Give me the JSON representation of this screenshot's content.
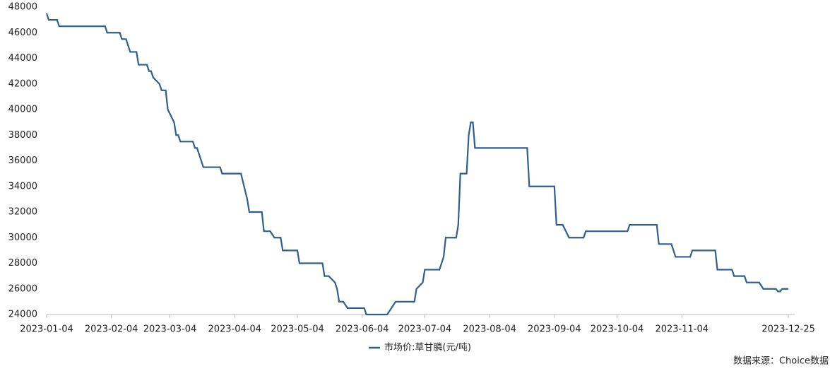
{
  "chart_data": {
    "type": "line",
    "x": [
      "2023-01-04",
      "2023-01-05",
      "2023-01-09",
      "2023-01-10",
      "2023-02-01",
      "2023-02-02",
      "2023-02-08",
      "2023-02-09",
      "2023-02-11",
      "2023-02-13",
      "2023-02-16",
      "2023-02-17",
      "2023-02-21",
      "2023-02-22",
      "2023-02-23",
      "2023-02-24",
      "2023-02-27",
      "2023-02-28",
      "2023-03-02",
      "2023-03-03",
      "2023-03-06",
      "2023-03-07",
      "2023-03-08",
      "2023-03-09",
      "2023-03-15",
      "2023-03-16",
      "2023-03-17",
      "2023-03-20",
      "2023-03-28",
      "2023-03-29",
      "2023-04-07",
      "2023-04-10",
      "2023-04-11",
      "2023-04-17",
      "2023-04-18",
      "2023-04-21",
      "2023-04-23",
      "2023-04-26",
      "2023-04-27",
      "2023-05-04",
      "2023-05-05",
      "2023-05-16",
      "2023-05-17",
      "2023-05-19",
      "2023-05-22",
      "2023-05-23",
      "2023-05-24",
      "2023-05-26",
      "2023-05-28",
      "2023-06-05",
      "2023-06-06",
      "2023-06-16",
      "2023-06-18",
      "2023-06-20",
      "2023-06-29",
      "2023-06-30",
      "2023-07-03",
      "2023-07-04",
      "2023-07-11",
      "2023-07-13",
      "2023-07-14",
      "2023-07-19",
      "2023-07-20",
      "2023-07-21",
      "2023-07-24",
      "2023-07-25",
      "2023-07-26",
      "2023-07-27",
      "2023-07-28",
      "2023-08-22",
      "2023-08-23",
      "2023-09-04",
      "2023-09-05",
      "2023-09-08",
      "2023-09-11",
      "2023-09-18",
      "2023-09-19",
      "2023-10-09",
      "2023-10-10",
      "2023-10-23",
      "2023-10-24",
      "2023-10-30",
      "2023-11-01",
      "2023-11-08",
      "2023-11-09",
      "2023-11-20",
      "2023-11-21",
      "2023-11-28",
      "2023-11-29",
      "2023-12-04",
      "2023-12-05",
      "2023-12-11",
      "2023-12-13",
      "2023-12-19",
      "2023-12-20",
      "2023-12-21",
      "2023-12-22",
      "2023-12-25"
    ],
    "series": [
      {
        "name": "市场价:草甘膦(元/吨)",
        "color": "#2f5f8f",
        "values": [
          47500,
          47000,
          47000,
          46500,
          46500,
          46000,
          46000,
          45500,
          45500,
          44500,
          44500,
          43500,
          43500,
          43000,
          43000,
          42500,
          42000,
          41500,
          41500,
          40000,
          39000,
          38000,
          38000,
          37500,
          37500,
          37000,
          37000,
          35500,
          35500,
          35000,
          35000,
          33000,
          32000,
          32000,
          30500,
          30500,
          30000,
          30000,
          29000,
          29000,
          28000,
          28000,
          27000,
          27000,
          26500,
          26000,
          25000,
          25000,
          24500,
          24500,
          24000,
          24000,
          24500,
          25000,
          25000,
          26000,
          26500,
          27500,
          27500,
          28500,
          30000,
          30000,
          31000,
          35000,
          35000,
          38000,
          39000,
          39000,
          37000,
          37000,
          34000,
          34000,
          31000,
          31000,
          30000,
          30000,
          30500,
          30500,
          31000,
          31000,
          29500,
          29500,
          28500,
          28500,
          29000,
          29000,
          27500,
          27500,
          27000,
          27000,
          26500,
          26500,
          26000,
          26000,
          25800,
          25800,
          26000,
          26000
        ]
      }
    ],
    "xlim": [
      "2023-01-04",
      "2023-12-28"
    ],
    "xticks": [
      "2023-01-04",
      "2023-02-04",
      "2023-03-04",
      "2023-04-04",
      "2023-05-04",
      "2023-06-04",
      "2023-07-04",
      "2023-08-04",
      "2023-09-04",
      "2023-10-04",
      "2023-11-04",
      "2023-12-25"
    ],
    "ylim": [
      24000,
      48000
    ],
    "yticks": [
      24000,
      26000,
      28000,
      30000,
      32000,
      34000,
      36000,
      38000,
      40000,
      42000,
      44000,
      46000,
      48000
    ],
    "grid": false,
    "legend": "bottom",
    "source": "数据来源：Choice数据"
  }
}
